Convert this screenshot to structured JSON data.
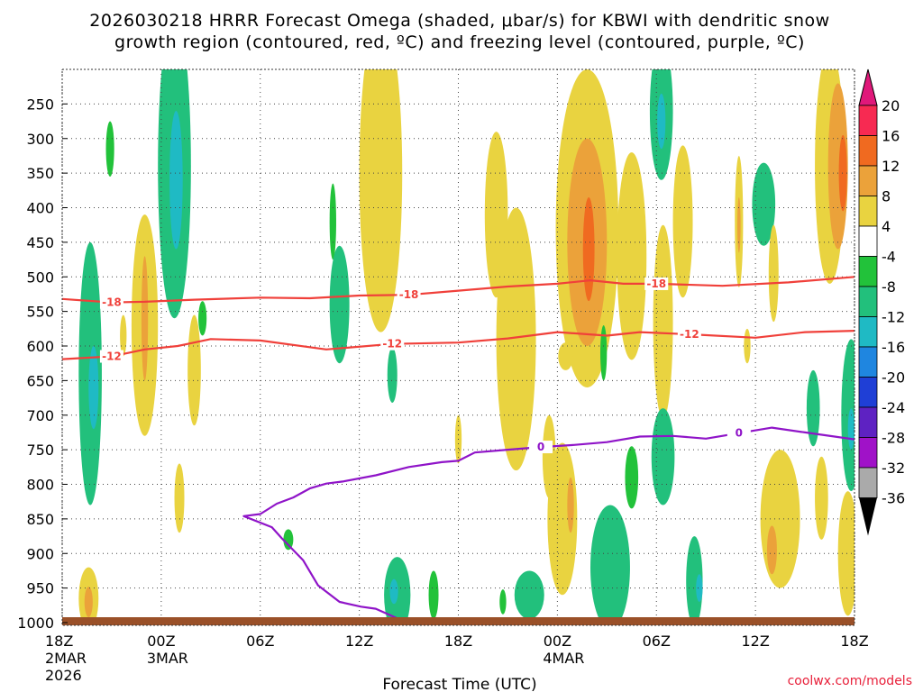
{
  "colors": {
    "red_contour": "#f0403a",
    "purple_contour": "#8f14c8",
    "ground": "#9a5028",
    "grid": "#444444"
  },
  "chart_data": {
    "type": "contour",
    "title_line1": "2026030218 HRRR Forecast Omega (shaded, μbar/s) for KBWI with dendritic snow",
    "title_line2": "growth region (contoured, red, ºC) and freezing level (contoured, purple, ºC)",
    "xlabel": "Forecast Time (UTC)",
    "credit": "coolwx.com/models",
    "x_ticks": [
      {
        "hour": 0,
        "label": "18Z",
        "sub1": "2MAR",
        "sub2": "2026"
      },
      {
        "hour": 6,
        "label": "00Z",
        "sub1": "3MAR",
        "sub2": ""
      },
      {
        "hour": 12,
        "label": "06Z",
        "sub1": "",
        "sub2": ""
      },
      {
        "hour": 18,
        "label": "12Z",
        "sub1": "",
        "sub2": ""
      },
      {
        "hour": 24,
        "label": "18Z",
        "sub1": "",
        "sub2": ""
      },
      {
        "hour": 30,
        "label": "00Z",
        "sub1": "4MAR",
        "sub2": ""
      },
      {
        "hour": 36,
        "label": "06Z",
        "sub1": "",
        "sub2": ""
      },
      {
        "hour": 42,
        "label": "12Z",
        "sub1": "",
        "sub2": ""
      },
      {
        "hour": 48,
        "label": "18Z",
        "sub1": "",
        "sub2": ""
      }
    ],
    "x_range_hours": [
      0,
      48
    ],
    "y_levels": [
      250,
      300,
      350,
      400,
      450,
      500,
      550,
      600,
      650,
      700,
      750,
      800,
      850,
      900,
      950,
      1000
    ],
    "y_range_hpa": [
      200,
      1000
    ],
    "colorbar": {
      "labels": [
        "20",
        "16",
        "12",
        "8",
        "4",
        "-4",
        "-8",
        "-12",
        "-16",
        "-20",
        "-24",
        "-28",
        "-32",
        "-36"
      ],
      "colors": [
        "#f72a52",
        "#f06a20",
        "#eba23a",
        "#e9d340",
        "#ffffff",
        "#22c23a",
        "#22c07c",
        "#1fbac4",
        "#1f86e0",
        "#1f3fd6",
        "#5e22c2",
        "#a012c8",
        "#aaaaaa"
      ]
    },
    "contours": [
      {
        "name": "-18",
        "color": "red",
        "label": "-18",
        "points": [
          [
            0,
            532
          ],
          [
            3,
            537
          ],
          [
            5,
            536
          ],
          [
            8,
            533
          ],
          [
            12,
            530
          ],
          [
            15,
            531
          ],
          [
            18,
            527
          ],
          [
            21,
            526
          ],
          [
            24,
            520
          ],
          [
            27,
            514
          ],
          [
            30,
            510
          ],
          [
            32,
            505
          ],
          [
            34,
            510
          ],
          [
            36,
            510
          ],
          [
            40,
            513
          ],
          [
            44,
            508
          ],
          [
            48,
            500
          ]
        ]
      },
      {
        "name": "-12",
        "color": "red",
        "label": "-12",
        "points": [
          [
            0,
            619
          ],
          [
            3,
            615
          ],
          [
            5,
            605
          ],
          [
            7,
            600
          ],
          [
            9,
            590
          ],
          [
            12,
            592
          ],
          [
            16,
            605
          ],
          [
            20,
            597
          ],
          [
            24,
            595
          ],
          [
            27,
            589
          ],
          [
            30,
            580
          ],
          [
            33,
            585
          ],
          [
            35,
            580
          ],
          [
            38,
            583
          ],
          [
            42,
            588
          ],
          [
            45,
            580
          ],
          [
            48,
            578
          ]
        ]
      },
      {
        "name": "0",
        "color": "purple",
        "label": "0",
        "points": [
          [
            48,
            735
          ],
          [
            45,
            725
          ],
          [
            43,
            718
          ],
          [
            41,
            726
          ],
          [
            39,
            734
          ],
          [
            37,
            730
          ],
          [
            35,
            731
          ],
          [
            33,
            739
          ],
          [
            31,
            743
          ],
          [
            29,
            746
          ],
          [
            27,
            750
          ],
          [
            25,
            754
          ],
          [
            24,
            766
          ],
          [
            23,
            768
          ],
          [
            21,
            775
          ],
          [
            19,
            787
          ],
          [
            17,
            796
          ],
          [
            16,
            799
          ],
          [
            15,
            806
          ],
          [
            14,
            819
          ],
          [
            13,
            828
          ],
          [
            12,
            843
          ],
          [
            11,
            846
          ],
          [
            12.7,
            862
          ],
          [
            13.3,
            878
          ],
          [
            14.6,
            910
          ],
          [
            15.5,
            946
          ],
          [
            16.8,
            970
          ],
          [
            18.1,
            977
          ],
          [
            19,
            980
          ],
          [
            20.5,
            996
          ],
          [
            20.9,
            999
          ],
          [
            18.5,
            1007
          ],
          [
            15,
            1012
          ]
        ]
      }
    ],
    "omega_cells": [
      {
        "x": 1.7,
        "p": 640,
        "rx": 0.7,
        "ry": 190,
        "value": -8
      },
      {
        "x": 1.9,
        "p": 660,
        "rx": 0.3,
        "ry": 60,
        "value": -12
      },
      {
        "x": 1.6,
        "p": 965,
        "rx": 0.6,
        "ry": 45,
        "value": 6
      },
      {
        "x": 1.6,
        "p": 970,
        "rx": 0.25,
        "ry": 22,
        "value": 10
      },
      {
        "x": 2.9,
        "p": 315,
        "rx": 0.25,
        "ry": 40,
        "value": -6
      },
      {
        "x": 3.7,
        "p": 585,
        "rx": 0.2,
        "ry": 30,
        "value": 6
      },
      {
        "x": 5.0,
        "p": 570,
        "rx": 0.8,
        "ry": 160,
        "value": 6
      },
      {
        "x": 5.0,
        "p": 560,
        "rx": 0.2,
        "ry": 90,
        "value": 10
      },
      {
        "x": 6.8,
        "p": 340,
        "rx": 1.0,
        "ry": 220,
        "value": -8
      },
      {
        "x": 6.9,
        "p": 360,
        "rx": 0.4,
        "ry": 100,
        "value": -12
      },
      {
        "x": 8.0,
        "p": 635,
        "rx": 0.4,
        "ry": 80,
        "value": 6
      },
      {
        "x": 8.5,
        "p": 560,
        "rx": 0.25,
        "ry": 25,
        "value": -6
      },
      {
        "x": 7.1,
        "p": 820,
        "rx": 0.3,
        "ry": 50,
        "value": 6
      },
      {
        "x": 13.7,
        "p": 880,
        "rx": 0.3,
        "ry": 15,
        "value": -6
      },
      {
        "x": 16.4,
        "p": 420,
        "rx": 0.2,
        "ry": 55,
        "value": -6
      },
      {
        "x": 16.8,
        "p": 540,
        "rx": 0.6,
        "ry": 85,
        "value": -8
      },
      {
        "x": 19.3,
        "p": 350,
        "rx": 1.3,
        "ry": 230,
        "value": 6
      },
      {
        "x": 20.0,
        "p": 642,
        "rx": 0.3,
        "ry": 40,
        "value": -8
      },
      {
        "x": 20.3,
        "p": 960,
        "rx": 0.8,
        "ry": 55,
        "value": -8
      },
      {
        "x": 20.1,
        "p": 955,
        "rx": 0.25,
        "ry": 18,
        "value": -12
      },
      {
        "x": 22.5,
        "p": 960,
        "rx": 0.3,
        "ry": 35,
        "value": -6
      },
      {
        "x": 24.0,
        "p": 735,
        "rx": 0.2,
        "ry": 35,
        "value": 6
      },
      {
        "x": 26.3,
        "p": 410,
        "rx": 0.7,
        "ry": 120,
        "value": 6
      },
      {
        "x": 27.5,
        "p": 590,
        "rx": 1.2,
        "ry": 190,
        "value": 6
      },
      {
        "x": 26.7,
        "p": 970,
        "rx": 0.2,
        "ry": 18,
        "value": -6
      },
      {
        "x": 28.3,
        "p": 960,
        "rx": 0.9,
        "ry": 35,
        "value": -8
      },
      {
        "x": 29.5,
        "p": 760,
        "rx": 0.4,
        "ry": 60,
        "value": 6
      },
      {
        "x": 30.3,
        "p": 850,
        "rx": 0.9,
        "ry": 110,
        "value": 6
      },
      {
        "x": 30.8,
        "p": 830,
        "rx": 0.2,
        "ry": 40,
        "value": 10
      },
      {
        "x": 31.0,
        "p": 420,
        "rx": 0.45,
        "ry": 100,
        "value": -8
      },
      {
        "x": 31.8,
        "p": 430,
        "rx": 1.9,
        "ry": 230,
        "value": 6
      },
      {
        "x": 31.8,
        "p": 450,
        "rx": 1.2,
        "ry": 150,
        "value": 10
      },
      {
        "x": 31.9,
        "p": 460,
        "rx": 0.35,
        "ry": 75,
        "value": 14
      },
      {
        "x": 30.5,
        "p": 615,
        "rx": 0.45,
        "ry": 20,
        "value": 6
      },
      {
        "x": 32.8,
        "p": 610,
        "rx": 0.2,
        "ry": 40,
        "value": -6
      },
      {
        "x": 34.5,
        "p": 790,
        "rx": 0.4,
        "ry": 45,
        "value": -6
      },
      {
        "x": 33.2,
        "p": 920,
        "rx": 1.2,
        "ry": 90,
        "value": -8
      },
      {
        "x": 34.5,
        "p": 470,
        "rx": 0.9,
        "ry": 150,
        "value": 6
      },
      {
        "x": 36.3,
        "p": 260,
        "rx": 0.7,
        "ry": 100,
        "value": -8
      },
      {
        "x": 36.3,
        "p": 275,
        "rx": 0.25,
        "ry": 40,
        "value": -12
      },
      {
        "x": 36.4,
        "p": 565,
        "rx": 0.6,
        "ry": 140,
        "value": 6
      },
      {
        "x": 36.4,
        "p": 760,
        "rx": 0.7,
        "ry": 70,
        "value": -8
      },
      {
        "x": 37.6,
        "p": 420,
        "rx": 0.6,
        "ry": 110,
        "value": 6
      },
      {
        "x": 38.3,
        "p": 940,
        "rx": 0.5,
        "ry": 65,
        "value": -8
      },
      {
        "x": 38.6,
        "p": 950,
        "rx": 0.2,
        "ry": 20,
        "value": -12
      },
      {
        "x": 41.0,
        "p": 420,
        "rx": 0.25,
        "ry": 95,
        "value": 6
      },
      {
        "x": 41.0,
        "p": 425,
        "rx": 0.1,
        "ry": 40,
        "value": 10
      },
      {
        "x": 42.5,
        "p": 395,
        "rx": 0.7,
        "ry": 60,
        "value": -8
      },
      {
        "x": 43.1,
        "p": 495,
        "rx": 0.3,
        "ry": 70,
        "value": 6
      },
      {
        "x": 41.5,
        "p": 600,
        "rx": 0.2,
        "ry": 25,
        "value": 6
      },
      {
        "x": 43.5,
        "p": 850,
        "rx": 1.2,
        "ry": 100,
        "value": 6
      },
      {
        "x": 43.0,
        "p": 895,
        "rx": 0.3,
        "ry": 35,
        "value": 10
      },
      {
        "x": 45.5,
        "p": 690,
        "rx": 0.4,
        "ry": 55,
        "value": -8
      },
      {
        "x": 46.5,
        "p": 340,
        "rx": 0.9,
        "ry": 170,
        "value": 6
      },
      {
        "x": 47.0,
        "p": 340,
        "rx": 0.6,
        "ry": 120,
        "value": 10
      },
      {
        "x": 47.3,
        "p": 350,
        "rx": 0.25,
        "ry": 55,
        "value": 14
      },
      {
        "x": 47.8,
        "p": 700,
        "rx": 0.6,
        "ry": 110,
        "value": -8
      },
      {
        "x": 47.8,
        "p": 720,
        "rx": 0.2,
        "ry": 30,
        "value": -12
      },
      {
        "x": 47.6,
        "p": 900,
        "rx": 0.6,
        "ry": 90,
        "value": 6
      },
      {
        "x": 46.0,
        "p": 820,
        "rx": 0.4,
        "ry": 60,
        "value": 6
      }
    ]
  }
}
